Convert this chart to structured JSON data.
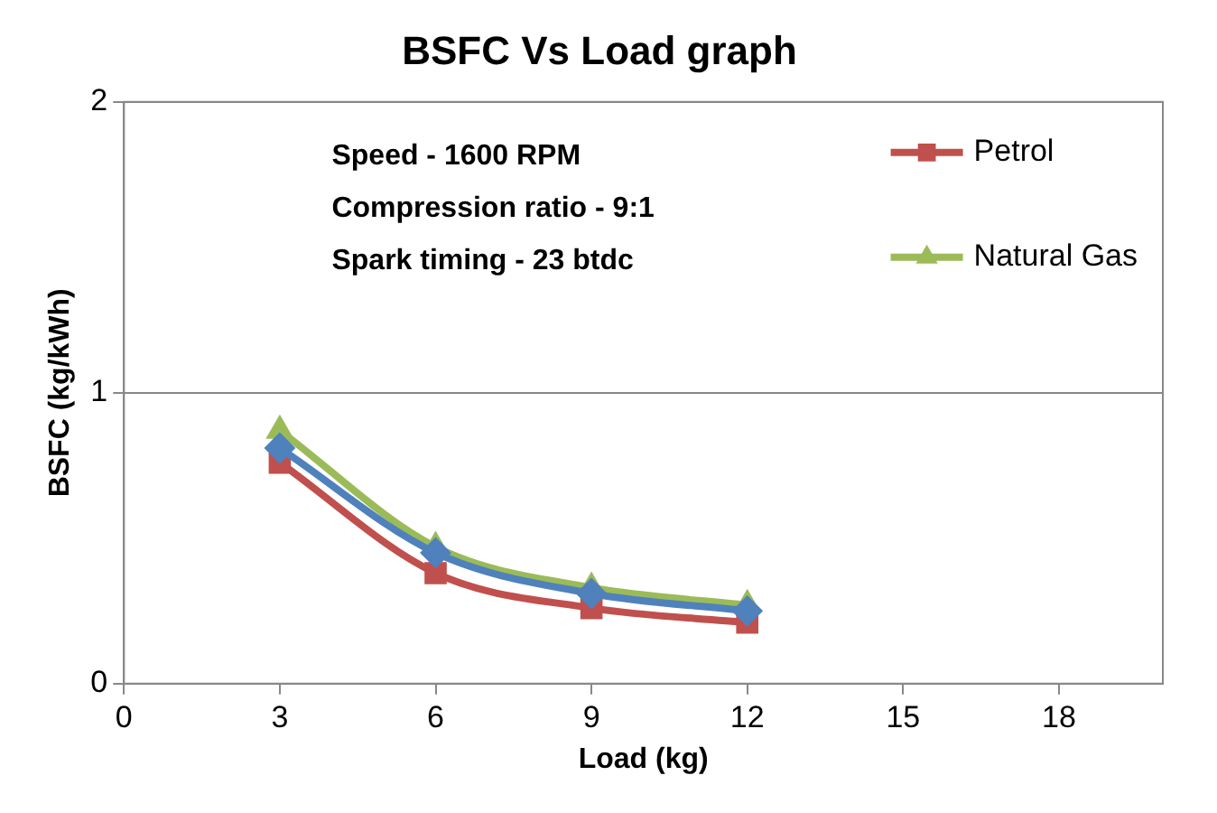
{
  "chart_data": {
    "type": "line",
    "title": "BSFC Vs Load graph",
    "xlabel": "Load (kg)",
    "ylabel": "BSFC (kg/kWh)",
    "x": [
      3,
      6,
      9,
      12
    ],
    "series": [
      {
        "name": "Petrol",
        "color": "#c0504d",
        "marker": "square",
        "values": [
          0.76,
          0.38,
          0.26,
          0.21
        ]
      },
      {
        "name": "Natural Gas",
        "color": "#9bbb59",
        "marker": "triangle",
        "values": [
          0.87,
          0.47,
          0.33,
          0.27
        ]
      },
      {
        "color": "#4f81bd",
        "marker": "diamond",
        "values": [
          0.81,
          0.45,
          0.31,
          0.25
        ]
      }
    ],
    "xlim": [
      0,
      20
    ],
    "xticks": [
      0,
      3,
      6,
      9,
      12,
      15,
      18
    ],
    "ylim": [
      0,
      2
    ],
    "yticks": [
      0,
      1,
      2
    ],
    "grid": "y",
    "legend": "top right",
    "annotations": [
      "Speed - 1600 RPM",
      "Compression ratio - 9:1",
      "Spark timing - 23 btdc"
    ]
  }
}
